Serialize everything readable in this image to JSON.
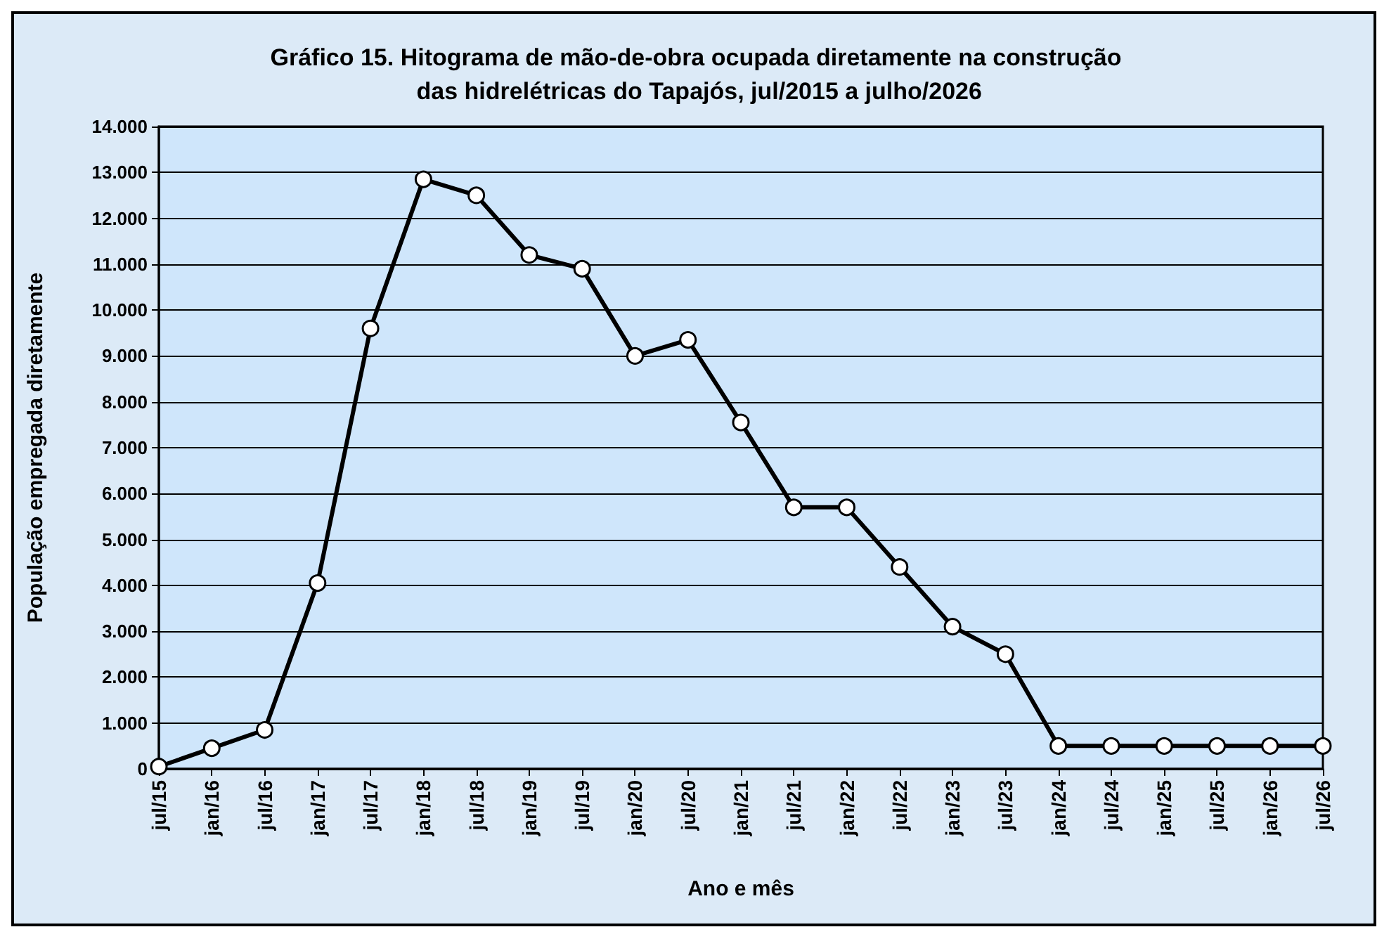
{
  "chart_data": {
    "type": "line",
    "title": "Gráfico 15. Hitograma de mão-de-obra ocupada diretamente na construção das hidrelétricas do Tapajós, jul/2015 a julho/2026",
    "xlabel": "Ano e mês",
    "ylabel": "População empregada diretamente",
    "categories": [
      "jul/15",
      "jan/16",
      "jul/16",
      "jan/17",
      "jul/17",
      "jan/18",
      "jul/18",
      "jan/19",
      "jul/19",
      "jan/20",
      "jul/20",
      "jan/21",
      "jul/21",
      "jan/22",
      "jul/22",
      "jan/23",
      "jul/23",
      "jan/24",
      "jul/24",
      "jan/25",
      "jul/25",
      "jan/26",
      "jul/26"
    ],
    "series": [
      {
        "color": "#000000",
        "values": [
          50,
          450,
          850,
          4050,
          9600,
          12850,
          12500,
          11200,
          10900,
          9000,
          9350,
          7550,
          5700,
          5700,
          4400,
          3100,
          2500,
          500,
          500,
          500,
          500,
          500,
          500
        ]
      }
    ],
    "ylim": [
      0,
      14000
    ],
    "yticks": [
      0,
      {
        "value": 1000,
        "label": "1.000"
      },
      {
        "value": 2000,
        "label": "2.000"
      },
      {
        "value": 3000,
        "label": "3.000"
      },
      {
        "value": 4000,
        "label": "4.000"
      },
      {
        "value": 5000,
        "label": "5.000"
      },
      {
        "value": 6000,
        "label": "6.000"
      },
      {
        "value": 7000,
        "label": "7.000"
      },
      {
        "value": 8000,
        "label": "8.000"
      },
      {
        "value": 9000,
        "label": "9.000"
      },
      {
        "value": 10000,
        "label": "10.000"
      },
      {
        "value": 11000,
        "label": "11.000"
      },
      {
        "value": 12000,
        "label": "12.000"
      },
      {
        "value": 13000,
        "label": "13.000"
      },
      {
        "value": 14000,
        "label": "14.000"
      }
    ],
    "grid": "y",
    "marker": "circle",
    "line_style": "solid"
  }
}
